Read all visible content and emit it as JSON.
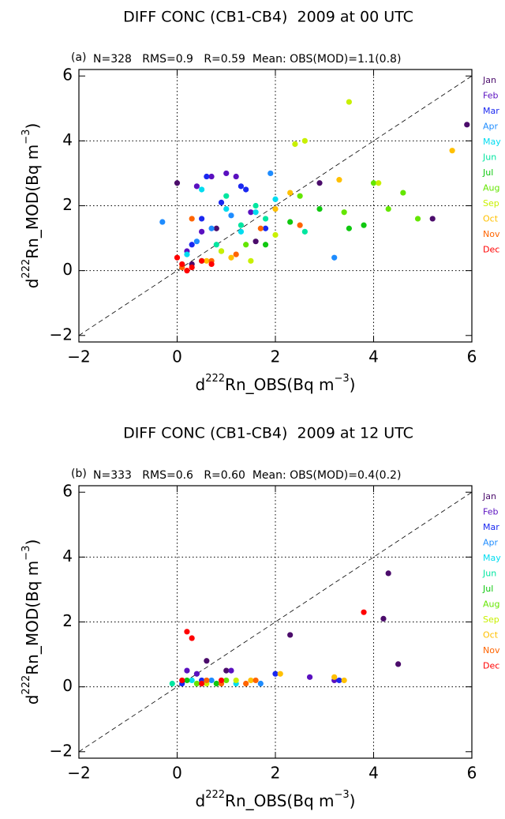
{
  "chart_data": [
    {
      "type": "scatter",
      "title": "DIFF CONC (CB1-CB4)  2009 at 00 UTC",
      "panel_label": "(a)",
      "annotation": "N=328   RMS=0.9   R=0.59  Mean: OBS(MOD)=1.1(0.8)",
      "xlabel": [
        "d",
        "222",
        "Rn_OBS(Bq m",
        "−3",
        ")"
      ],
      "ylabel": [
        "d",
        "222",
        "Rn_MOD(Bq m",
        "−3",
        ")"
      ],
      "xlim": [
        -2,
        6
      ],
      "ylim": [
        -2.2,
        6.2
      ],
      "xticks": [
        {
          "value": -2,
          "label": "−2"
        },
        0,
        2,
        4,
        6
      ],
      "yticks": [
        {
          "value": -2,
          "label": "−2"
        },
        0,
        2,
        4,
        6
      ],
      "reference_lines": [
        0,
        2,
        4
      ],
      "diagonal": true,
      "series": [
        {
          "name": "Jan",
          "color": "#4b0c6b",
          "x": [
            0.0,
            5.9,
            5.2,
            2.9,
            0.8,
            1.6,
            0.3
          ],
          "values": [
            2.7,
            4.5,
            1.6,
            2.7,
            1.3,
            0.9,
            0.2
          ]
        },
        {
          "name": "Feb",
          "color": "#5a10c0",
          "x": [
            0.4,
            1.0,
            1.2,
            0.7,
            0.2,
            1.5,
            0.5
          ],
          "values": [
            2.6,
            3.0,
            2.9,
            2.9,
            0.6,
            1.8,
            1.2
          ]
        },
        {
          "name": "Mar",
          "color": "#1a28f0",
          "x": [
            0.6,
            0.9,
            1.3,
            1.4,
            0.3,
            0.5,
            1.8
          ],
          "values": [
            2.9,
            2.1,
            2.6,
            2.5,
            0.8,
            1.6,
            1.3
          ]
        },
        {
          "name": "Apr",
          "color": "#1e8cff",
          "x": [
            -0.3,
            1.9,
            0.7,
            3.2,
            1.1,
            0.4
          ],
          "values": [
            1.5,
            3.0,
            1.3,
            0.4,
            1.7,
            0.9
          ]
        },
        {
          "name": "May",
          "color": "#00dcf0",
          "x": [
            0.5,
            1.0,
            1.6,
            2.0,
            0.2,
            1.3
          ],
          "values": [
            2.5,
            1.9,
            1.8,
            2.2,
            0.5,
            1.2
          ]
        },
        {
          "name": "Jun",
          "color": "#00e6a0",
          "x": [
            1.0,
            1.6,
            2.6,
            1.8,
            0.8,
            1.3,
            0.5
          ],
          "values": [
            2.3,
            2.0,
            1.2,
            1.6,
            0.8,
            1.4,
            0.3
          ]
        },
        {
          "name": "Jul",
          "color": "#10c810",
          "x": [
            2.3,
            3.5,
            3.8,
            2.9,
            1.8,
            0.9
          ],
          "values": [
            1.5,
            1.3,
            1.4,
            1.9,
            0.8,
            0.6
          ]
        },
        {
          "name": "Aug",
          "color": "#64e600",
          "x": [
            4.3,
            4.6,
            4.0,
            2.5,
            3.4,
            1.4,
            4.9
          ],
          "values": [
            1.9,
            2.4,
            2.7,
            2.3,
            1.8,
            0.8,
            1.6
          ]
        },
        {
          "name": "Sep",
          "color": "#c8f000",
          "x": [
            3.5,
            2.4,
            2.6,
            4.1,
            1.5,
            2.0,
            0.9
          ],
          "values": [
            5.2,
            3.9,
            4.0,
            2.7,
            0.3,
            1.1,
            0.6
          ]
        },
        {
          "name": "Oct",
          "color": "#ffc000",
          "x": [
            5.6,
            2.3,
            3.3,
            2.0,
            1.1,
            0.6
          ],
          "values": [
            3.7,
            2.4,
            2.8,
            1.9,
            0.4,
            0.3
          ]
        },
        {
          "name": "Nov",
          "color": "#ff6400",
          "x": [
            0.3,
            1.7,
            2.5,
            0.7,
            0.1,
            1.2
          ],
          "values": [
            1.6,
            1.3,
            1.4,
            0.3,
            0.1,
            0.5
          ]
        },
        {
          "name": "Dec",
          "color": "#ff0000",
          "x": [
            0.1,
            0.3,
            0.5,
            0.2,
            0.7,
            0.0
          ],
          "values": [
            0.2,
            0.1,
            0.3,
            0.0,
            0.2,
            0.4
          ]
        }
      ]
    },
    {
      "type": "scatter",
      "title": "DIFF CONC (CB1-CB4)  2009 at 12 UTC",
      "panel_label": "(b)",
      "annotation": "N=333   RMS=0.6   R=0.60  Mean: OBS(MOD)=0.4(0.2)",
      "xlabel": [
        "d",
        "222",
        "Rn_OBS(Bq m",
        "−3",
        ")"
      ],
      "ylabel": [
        "d",
        "222",
        "Rn_MOD(Bq m",
        "−3",
        ")"
      ],
      "xlim": [
        -2,
        6
      ],
      "ylim": [
        -2.2,
        6.2
      ],
      "xticks": [
        {
          "value": -2,
          "label": "−2"
        },
        0,
        2,
        4,
        6
      ],
      "yticks": [
        {
          "value": -2,
          "label": "−2"
        },
        0,
        2,
        4,
        6
      ],
      "reference_lines": [
        0,
        2,
        4
      ],
      "diagonal": true,
      "series": [
        {
          "name": "Jan",
          "color": "#4b0c6b",
          "x": [
            4.3,
            4.2,
            4.5,
            2.3,
            0.6,
            1.0
          ],
          "values": [
            3.5,
            2.1,
            0.7,
            1.6,
            0.8,
            0.5
          ]
        },
        {
          "name": "Feb",
          "color": "#5a10c0",
          "x": [
            0.4,
            1.1,
            2.7,
            3.2,
            0.2
          ],
          "values": [
            0.4,
            0.5,
            0.3,
            0.2,
            0.5
          ]
        },
        {
          "name": "Mar",
          "color": "#1a28f0",
          "x": [
            0.5,
            2.0,
            3.3,
            0.1
          ],
          "values": [
            0.2,
            0.4,
            0.2,
            0.1
          ]
        },
        {
          "name": "Apr",
          "color": "#1e8cff",
          "x": [
            1.7,
            0.7
          ],
          "values": [
            0.1,
            0.2
          ]
        },
        {
          "name": "May",
          "color": "#00dcf0",
          "x": [
            0.3,
            1.2
          ],
          "values": [
            0.2,
            0.1
          ]
        },
        {
          "name": "Jun",
          "color": "#00e6a0",
          "x": [
            0.5,
            -0.1
          ],
          "values": [
            0.1,
            0.1
          ]
        },
        {
          "name": "Jul",
          "color": "#10c810",
          "x": [
            0.8,
            0.2
          ],
          "values": [
            0.1,
            0.2
          ]
        },
        {
          "name": "Aug",
          "color": "#64e600",
          "x": [
            1.0,
            0.4
          ],
          "values": [
            0.2,
            0.1
          ]
        },
        {
          "name": "Sep",
          "color": "#c8f000",
          "x": [
            1.2,
            0.6
          ],
          "values": [
            0.2,
            0.1
          ]
        },
        {
          "name": "Oct",
          "color": "#ffc000",
          "x": [
            2.1,
            3.4,
            3.2,
            1.5
          ],
          "values": [
            0.4,
            0.2,
            0.3,
            0.2
          ]
        },
        {
          "name": "Nov",
          "color": "#ff6400",
          "x": [
            1.4,
            1.6,
            0.6,
            0.9
          ],
          "values": [
            0.1,
            0.2,
            0.2,
            0.1
          ]
        },
        {
          "name": "Dec",
          "color": "#ff0000",
          "x": [
            0.2,
            0.3,
            3.8,
            0.1,
            0.5,
            0.9
          ],
          "values": [
            1.7,
            1.5,
            2.3,
            0.2,
            0.1,
            0.2
          ]
        }
      ]
    }
  ]
}
